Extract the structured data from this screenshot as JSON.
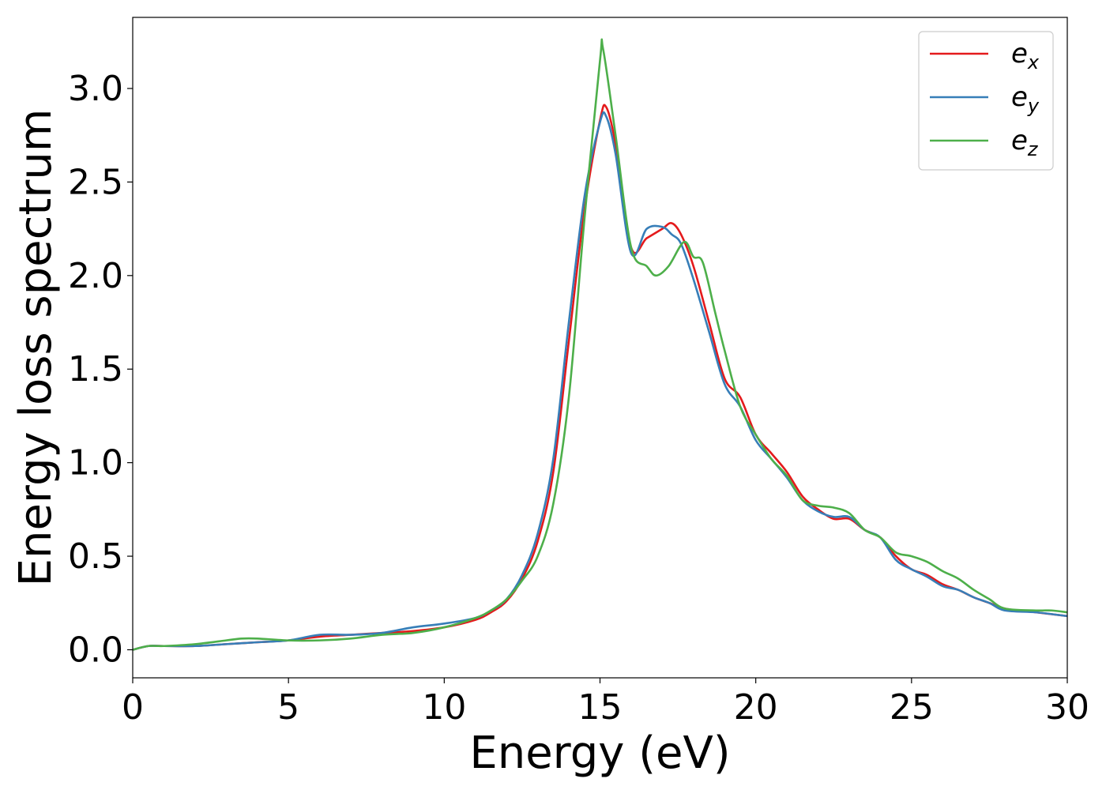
{
  "chart_data": {
    "type": "line",
    "title": "",
    "xlabel": "Energy (eV)",
    "ylabel": "Energy loss spectrum",
    "xlim": [
      0,
      30
    ],
    "ylim": [
      -0.15,
      3.38
    ],
    "xticks": [
      0,
      5,
      10,
      15,
      20,
      25,
      30
    ],
    "xtick_labels": [
      "0",
      "5",
      "10",
      "15",
      "20",
      "25",
      "30"
    ],
    "yticks": [
      0.0,
      0.5,
      1.0,
      1.5,
      2.0,
      2.5,
      3.0
    ],
    "ytick_labels": [
      "0.0",
      "0.5",
      "1.0",
      "1.5",
      "2.0",
      "2.5",
      "3.0"
    ],
    "grid": false,
    "legend_position": "top-right",
    "series": [
      {
        "name": "e",
        "subscript": "x",
        "color": "#e41a1c",
        "x": [
          0,
          0.5,
          1,
          2,
          3,
          4,
          5,
          6,
          7,
          8,
          9,
          10,
          11,
          11.5,
          12,
          12.5,
          13,
          13.5,
          14,
          14.5,
          15,
          15.2,
          15.5,
          16,
          16.5,
          17,
          17.3,
          17.6,
          18,
          18.5,
          19,
          19.5,
          20,
          20.5,
          21,
          21.5,
          22,
          22.5,
          23,
          23.5,
          24,
          24.5,
          25,
          25.5,
          26,
          26.5,
          27,
          27.5,
          28,
          29,
          30
        ],
        "y": [
          0.0,
          0.02,
          0.02,
          0.02,
          0.03,
          0.04,
          0.05,
          0.07,
          0.08,
          0.09,
          0.1,
          0.12,
          0.16,
          0.2,
          0.26,
          0.38,
          0.58,
          0.95,
          1.65,
          2.35,
          2.83,
          2.9,
          2.7,
          2.15,
          2.2,
          2.25,
          2.28,
          2.22,
          2.05,
          1.75,
          1.45,
          1.35,
          1.15,
          1.05,
          0.95,
          0.82,
          0.75,
          0.7,
          0.7,
          0.64,
          0.6,
          0.5,
          0.43,
          0.4,
          0.35,
          0.32,
          0.28,
          0.25,
          0.22,
          0.2,
          0.18
        ]
      },
      {
        "name": "e",
        "subscript": "y",
        "color": "#377eb8",
        "x": [
          0,
          0.5,
          1,
          2,
          3,
          4,
          5,
          6,
          7,
          8,
          9,
          10,
          11,
          11.5,
          12,
          12.5,
          13,
          13.5,
          14,
          14.5,
          15,
          15.2,
          15.5,
          16,
          16.5,
          17,
          17.3,
          17.6,
          18,
          18.5,
          19,
          19.5,
          20,
          20.5,
          21,
          21.5,
          22,
          22.5,
          23,
          23.5,
          24,
          24.5,
          25,
          25.5,
          26,
          26.5,
          27,
          27.5,
          28,
          29,
          30
        ],
        "y": [
          0.0,
          0.02,
          0.02,
          0.02,
          0.03,
          0.04,
          0.05,
          0.08,
          0.08,
          0.09,
          0.12,
          0.14,
          0.17,
          0.21,
          0.27,
          0.4,
          0.62,
          1.02,
          1.75,
          2.42,
          2.82,
          2.85,
          2.65,
          2.12,
          2.25,
          2.26,
          2.22,
          2.17,
          1.98,
          1.7,
          1.42,
          1.3,
          1.12,
          1.02,
          0.92,
          0.8,
          0.74,
          0.71,
          0.71,
          0.64,
          0.6,
          0.48,
          0.43,
          0.39,
          0.34,
          0.32,
          0.28,
          0.25,
          0.21,
          0.2,
          0.18
        ]
      },
      {
        "name": "e",
        "subscript": "z",
        "color": "#4daf4a",
        "x": [
          0,
          0.5,
          1,
          2,
          3,
          3.5,
          4,
          5,
          6,
          7,
          8,
          9,
          10,
          11,
          11.5,
          12,
          12.5,
          13,
          13.5,
          14,
          14.5,
          15,
          15.1,
          15.5,
          16,
          16.5,
          16.8,
          17.2,
          17.7,
          18,
          18.3,
          18.7,
          19,
          19.5,
          20,
          20.5,
          21,
          21.5,
          22,
          22.5,
          23,
          23.5,
          24,
          24.5,
          25,
          25.5,
          26,
          26.5,
          27,
          27.5,
          28,
          29,
          29.5,
          30
        ],
        "y": [
          0.0,
          0.02,
          0.02,
          0.03,
          0.05,
          0.06,
          0.06,
          0.05,
          0.05,
          0.06,
          0.08,
          0.09,
          0.12,
          0.17,
          0.21,
          0.27,
          0.37,
          0.5,
          0.78,
          1.35,
          2.3,
          3.15,
          3.21,
          2.75,
          2.15,
          2.05,
          2.0,
          2.05,
          2.18,
          2.1,
          2.07,
          1.8,
          1.6,
          1.3,
          1.15,
          1.02,
          0.93,
          0.8,
          0.77,
          0.76,
          0.73,
          0.64,
          0.6,
          0.52,
          0.5,
          0.47,
          0.42,
          0.38,
          0.32,
          0.27,
          0.22,
          0.21,
          0.21,
          0.2
        ]
      }
    ]
  }
}
